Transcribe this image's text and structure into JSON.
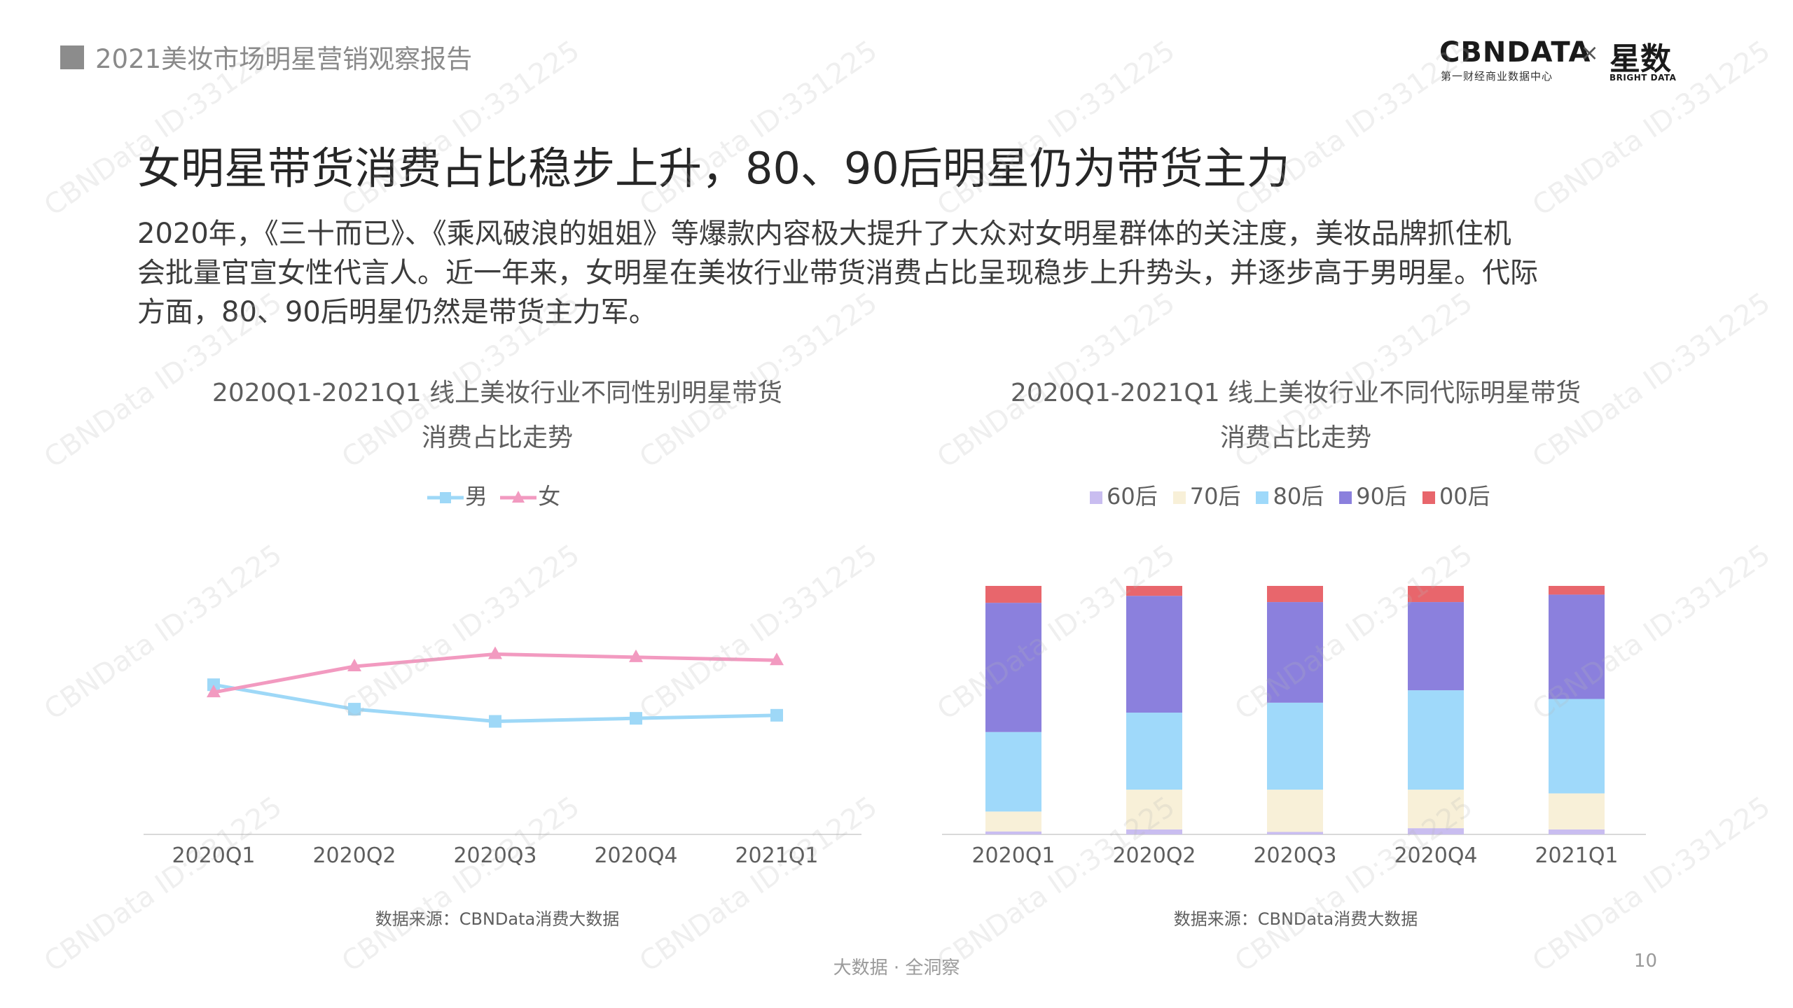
{
  "header": {
    "report_title": "2021美妆市场明星营销观察报告",
    "logo_cbn": "CBNDATA",
    "logo_cbn_sub": "第一财经商业数据中心",
    "logo_x": "×",
    "logo_star": "星数",
    "logo_star_sub": "BRIGHT DATA"
  },
  "main_title": "女明星带货消费占比稳步上升，80、90后明星仍为带货主力",
  "intro_lines": [
    "2020年，《三十而已》、《乘风破浪的姐姐》等爆款内容极大提升了大众对女明星群体的关注度，美妆品牌抓住机",
    "会批量官宣女性代言人。近一年来，女明星在美妆行业带货消费占比呈现稳步上升势头，并逐步高于男明星。代际",
    "方面，80、90后明星仍然是带货主力军。"
  ],
  "watermark": "CBNData ID:331225",
  "footer": "大数据 · 全洞察",
  "page_number": "10",
  "colors": {
    "male": "#9ed8f7",
    "female": "#f29ac0",
    "gen60": "#c9bdf0",
    "gen70": "#f8f0d8",
    "gen80": "#9fd9fa",
    "gen90": "#8b80dd",
    "gen00": "#e8666c"
  },
  "chart_data": [
    {
      "type": "line",
      "title_line1": "2020Q1-2021Q1 线上美妆行业不同性别明星带货",
      "title_line2": "消费占比走势",
      "categories": [
        "2020Q1",
        "2020Q2",
        "2020Q3",
        "2020Q4",
        "2021Q1"
      ],
      "series": [
        {
          "name": "男",
          "marker": "square",
          "values": [
            49,
            41,
            37,
            38,
            39
          ]
        },
        {
          "name": "女",
          "marker": "triangle",
          "values": [
            46.5,
            55,
            59,
            58,
            57
          ]
        }
      ],
      "ylim": [
        0,
        110
      ],
      "grid": false,
      "legend": "top-center",
      "source": "数据来源：CBNData消费大数据"
    },
    {
      "type": "bar",
      "stacked": true,
      "title_line1": "2020Q1-2021Q1 线上美妆行业不同代际明星带货",
      "title_line2": "消费占比走势",
      "categories": [
        "2020Q1",
        "2020Q2",
        "2020Q3",
        "2020Q4",
        "2021Q1"
      ],
      "series": [
        {
          "name": "60后",
          "values": [
            1.2,
            2,
            1,
            2.5,
            2
          ]
        },
        {
          "name": "70后",
          "values": [
            8,
            16,
            17,
            15.5,
            14.5
          ]
        },
        {
          "name": "80后",
          "values": [
            32,
            31,
            35,
            40,
            38
          ]
        },
        {
          "name": "90后",
          "values": [
            52,
            47,
            40.5,
            35.5,
            42
          ]
        },
        {
          "name": "00后",
          "values": [
            6.8,
            4,
            6.5,
            6.5,
            3.5
          ]
        }
      ],
      "ylim": [
        0,
        100
      ],
      "grid": false,
      "legend": "top-center",
      "source": "数据来源：CBNData消费大数据"
    }
  ]
}
